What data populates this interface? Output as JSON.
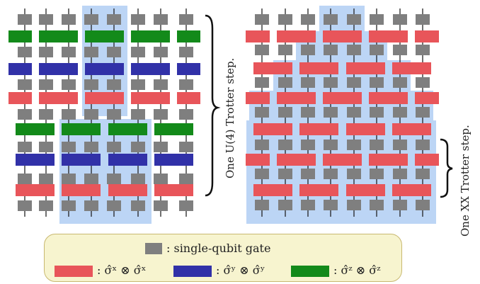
{
  "labels": {
    "u4_step": "One U(4) Trotter step.",
    "xx_step": "One XX Trotter step."
  },
  "legend": {
    "single_qubit": ": single-qubit gate",
    "xx": ": σ̂ˣ ⊗ σ̂ˣ",
    "yy": ": σ̂ʸ ⊗ σ̂ʸ",
    "zz": ": σ̂ᶻ ⊗ σ̂ᶻ"
  },
  "colors": {
    "single_qubit": "#7f7f7f",
    "xx": "#e8555a",
    "yy": "#3131a8",
    "zz": "#138a1a",
    "highlight": "#bcd5f5",
    "wire": "#222222",
    "legend_bg": "#f7f4cf",
    "legend_border": "#c8b870"
  },
  "icons": {
    "left_brace": "right-curly-brace-icon",
    "right_brace": "right-curly-brace-icon"
  }
}
